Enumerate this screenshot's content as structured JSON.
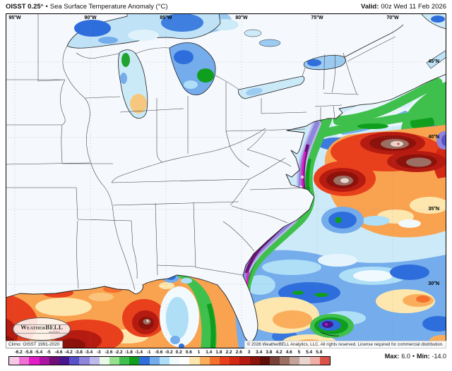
{
  "header": {
    "product": "OISST 0.25°",
    "separator": "•",
    "title": "Sea Surface Temperature Anomaly (°C)",
    "valid_label": "Valid:",
    "valid_value": "00z Wed 11 Feb 2026"
  },
  "map": {
    "lon_labels": [
      "95°W",
      "90°W",
      "85°W",
      "80°W",
      "75°W",
      "70°W"
    ],
    "lat_labels": [
      "45°N",
      "40°N",
      "35°N",
      "30°N"
    ],
    "climo": "Climo: OISST 1991-2020",
    "copyright": "© 2026 WeatherBELL Analytics, LLC. All rights reserved. License required for commercial distribution.",
    "logo_name": "WeatherBELL",
    "logo_sub": "analytics"
  },
  "legend": {
    "ticks": [
      "-6.2",
      "-5.8",
      "-5.4",
      "-5",
      "-4.6",
      "-4.2",
      "-3.8",
      "-3.4",
      "-3",
      "-2.6",
      "-2.2",
      "-1.8",
      "-1.4",
      "-1",
      "-0.6",
      "-0.2",
      "0.2",
      "0.6",
      "1",
      "1.4",
      "1.8",
      "2.2",
      "2.6",
      "3",
      "3.4",
      "3.8",
      "4.2",
      "4.6",
      "5",
      "5.4",
      "5.8"
    ],
    "colors": [
      "#F6C8E8",
      "#F070D2",
      "#E31EC6",
      "#AC14A2",
      "#6E0F75",
      "#47168F",
      "#5A52C8",
      "#8D86DC",
      "#BEB8ED",
      "#EAF8E8",
      "#97E08F",
      "#3FC04C",
      "#0F9E1E",
      "#2E6EDC",
      "#74ACEC",
      "#AEDFF7",
      "#F0FAFE",
      "#FFFFFF",
      "#FDE7AE",
      "#FAAE5C",
      "#F4702E",
      "#E8401C",
      "#D32814",
      "#B51B10",
      "#8C120C",
      "#5E0D08",
      "#774139",
      "#9C6F64",
      "#C4A399",
      "#E8D6D0",
      "#F0AFA6",
      "#D95348"
    ],
    "max_label": "Max:",
    "max_value": "6.0",
    "bullet": "•",
    "min_label": "Min:",
    "min_value": "-14.0"
  }
}
